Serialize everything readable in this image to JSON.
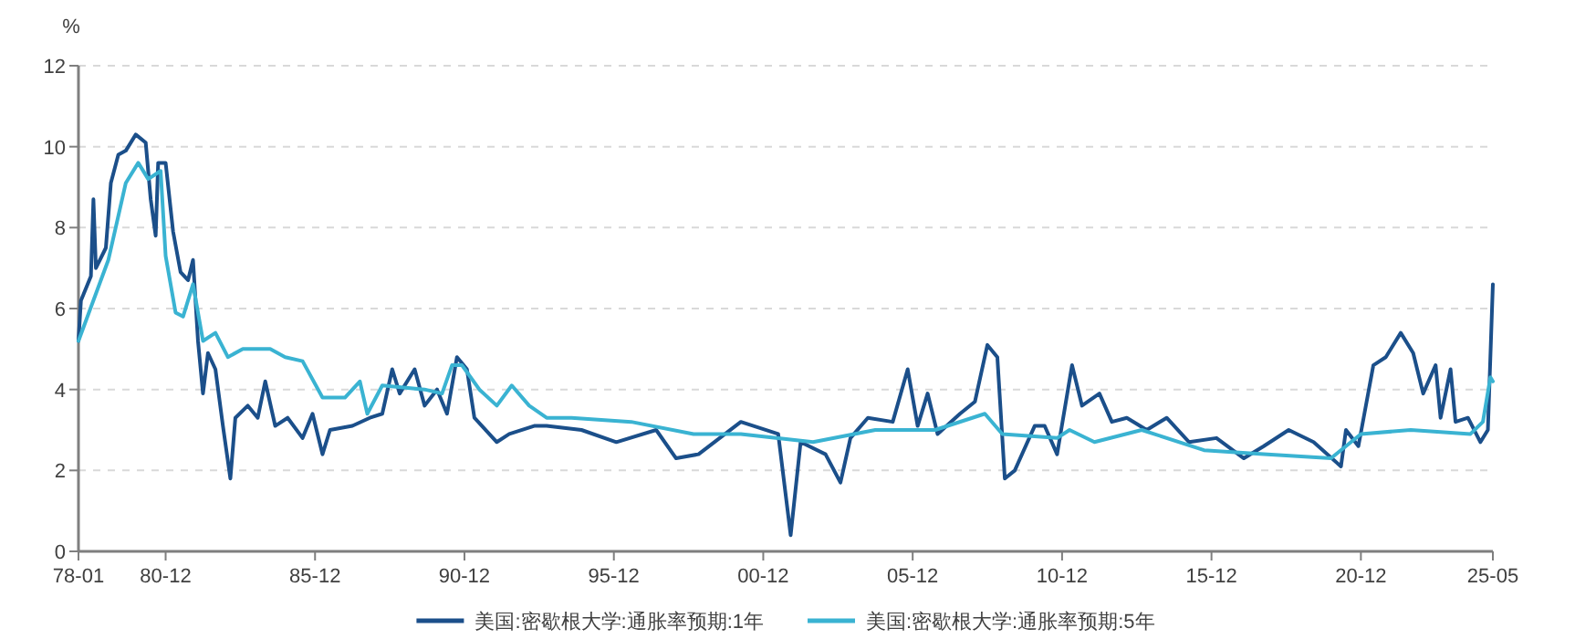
{
  "chart_data": {
    "type": "line",
    "ylabel": "%",
    "xlim": [
      "1978-01",
      "2025-05"
    ],
    "xticks": [
      {
        "value": "1978-01",
        "label": "78-01"
      },
      {
        "value": "1980-12",
        "label": "80-12"
      },
      {
        "value": "1985-12",
        "label": "85-12"
      },
      {
        "value": "1990-12",
        "label": "90-12"
      },
      {
        "value": "1995-12",
        "label": "95-12"
      },
      {
        "value": "2000-12",
        "label": "00-12"
      },
      {
        "value": "2005-12",
        "label": "05-12"
      },
      {
        "value": "2010-12",
        "label": "10-12"
      },
      {
        "value": "2015-12",
        "label": "15-12"
      },
      {
        "value": "2020-12",
        "label": "20-12"
      },
      {
        "value": "2025-05",
        "label": "25-05"
      }
    ],
    "ylim": [
      0,
      12
    ],
    "yticks": [
      0,
      2,
      4,
      6,
      8,
      10,
      12
    ],
    "grid": "y",
    "legend": "bottom",
    "line_style": "solid",
    "series": [
      {
        "name": "美国:密歇根大学:通胀率预期:1年",
        "color": "#1b4f8a",
        "x": [
          "1978-01",
          "1978-02",
          "1978-06",
          "1978-07",
          "1978-08",
          "1978-12",
          "1979-02",
          "1979-05",
          "1979-08",
          "1979-12",
          "1980-04",
          "1980-06",
          "1980-08",
          "1980-09",
          "1980-12",
          "1981-03",
          "1981-06",
          "1981-09",
          "1981-11",
          "1982-01",
          "1982-03",
          "1982-05",
          "1982-08",
          "1982-11",
          "1983-02",
          "1983-04",
          "1983-09",
          "1984-01",
          "1984-04",
          "1984-08",
          "1985-01",
          "1985-07",
          "1985-11",
          "1986-03",
          "1986-06",
          "1987-03",
          "1987-10",
          "1988-03",
          "1988-07",
          "1988-10",
          "1989-04",
          "1989-08",
          "1990-01",
          "1990-05",
          "1990-09",
          "1991-01",
          "1991-04",
          "1992-01",
          "1992-06",
          "1993-04",
          "1993-09",
          "1994-11",
          "1996-01",
          "1997-05",
          "1998-01",
          "1998-10",
          "2000-03",
          "2001-06",
          "2001-11",
          "2002-03",
          "2003-01",
          "2003-07",
          "2003-11",
          "2004-06",
          "2005-04",
          "2005-10",
          "2006-02",
          "2006-06",
          "2006-10",
          "2007-07",
          "2008-01",
          "2008-06",
          "2008-10",
          "2009-01",
          "2009-05",
          "2010-01",
          "2010-05",
          "2010-10",
          "2011-04",
          "2011-08",
          "2012-03",
          "2012-08",
          "2013-02",
          "2013-10",
          "2014-06",
          "2015-03",
          "2016-02",
          "2017-01",
          "2017-09",
          "2018-07",
          "2019-05",
          "2020-04",
          "2020-06",
          "2020-11",
          "2021-05",
          "2021-10",
          "2022-04",
          "2022-09",
          "2023-01",
          "2023-06",
          "2023-08",
          "2023-12",
          "2024-02",
          "2024-07",
          "2024-12",
          "2025-03",
          "2025-05"
        ],
        "values": [
          5.2,
          6.2,
          6.8,
          8.7,
          7.0,
          7.5,
          9.1,
          9.8,
          9.9,
          10.3,
          10.1,
          8.7,
          7.8,
          9.6,
          9.6,
          7.9,
          6.9,
          6.7,
          7.2,
          5.2,
          3.9,
          4.9,
          4.5,
          3.1,
          1.8,
          3.3,
          3.6,
          3.3,
          4.2,
          3.1,
          3.3,
          2.8,
          3.4,
          2.4,
          3.0,
          3.1,
          3.3,
          3.4,
          4.5,
          3.9,
          4.5,
          3.6,
          4.0,
          3.4,
          4.8,
          4.5,
          3.3,
          2.7,
          2.9,
          3.1,
          3.1,
          3.0,
          2.7,
          3.0,
          2.3,
          2.4,
          3.2,
          2.9,
          0.4,
          2.7,
          2.4,
          1.7,
          2.8,
          3.3,
          3.2,
          4.5,
          3.1,
          3.9,
          2.9,
          3.4,
          3.7,
          5.1,
          4.8,
          1.8,
          2.0,
          3.1,
          3.1,
          2.4,
          4.6,
          3.6,
          3.9,
          3.2,
          3.3,
          3.0,
          3.3,
          2.7,
          2.8,
          2.3,
          2.6,
          3.0,
          2.7,
          2.1,
          3.0,
          2.6,
          4.6,
          4.8,
          5.4,
          4.9,
          3.9,
          4.6,
          3.3,
          4.5,
          3.2,
          3.3,
          2.7,
          3.0,
          6.6
        ]
      },
      {
        "name": "美国:密歇根大学:通胀率预期:5年",
        "color": "#3ab3d2",
        "x": [
          "1978-01",
          "1979-01",
          "1979-08",
          "1980-01",
          "1980-05",
          "1980-10",
          "1980-12",
          "1981-04",
          "1981-07",
          "1981-11",
          "1982-03",
          "1982-08",
          "1983-01",
          "1983-07",
          "1984-06",
          "1984-12",
          "1985-07",
          "1986-03",
          "1986-12",
          "1987-06",
          "1987-09",
          "1988-03",
          "1989-08",
          "1990-03",
          "1990-07",
          "1990-11",
          "1991-06",
          "1992-01",
          "1992-07",
          "1993-02",
          "1993-09",
          "1994-07",
          "1996-07",
          "1998-08",
          "2000-03",
          "2002-08",
          "2004-09",
          "2006-09",
          "2008-05",
          "2008-12",
          "2010-10",
          "2011-03",
          "2012-01",
          "2013-08",
          "2015-09",
          "2017-09",
          "2019-12",
          "2020-12",
          "2022-08",
          "2024-08",
          "2025-01",
          "2025-04",
          "2025-05"
        ],
        "values": [
          5.2,
          7.2,
          9.1,
          9.6,
          9.2,
          9.4,
          7.3,
          5.9,
          5.8,
          6.6,
          5.2,
          5.4,
          4.8,
          5.0,
          5.0,
          4.8,
          4.7,
          3.8,
          3.8,
          4.2,
          3.4,
          4.1,
          4.0,
          3.9,
          4.6,
          4.6,
          4.0,
          3.6,
          4.1,
          3.6,
          3.3,
          3.3,
          3.2,
          2.9,
          2.9,
          2.7,
          3.0,
          3.0,
          3.4,
          2.9,
          2.8,
          3.0,
          2.7,
          3.0,
          2.5,
          2.4,
          2.3,
          2.9,
          3.0,
          2.9,
          3.2,
          4.3,
          4.2
        ]
      }
    ]
  }
}
